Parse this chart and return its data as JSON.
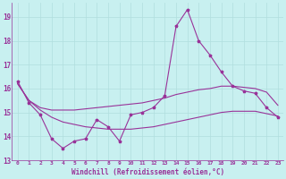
{
  "background_color": "#c8f0f0",
  "grid_color": "#b0dede",
  "line_color": "#993399",
  "marker": "*",
  "xlabel": "Windchill (Refroidissement éolien,°C)",
  "xlim": [
    -0.5,
    23.5
  ],
  "ylim": [
    13.0,
    19.6
  ],
  "yticks": [
    13,
    14,
    15,
    16,
    17,
    18,
    19
  ],
  "xticks": [
    0,
    1,
    2,
    3,
    4,
    5,
    6,
    7,
    8,
    9,
    10,
    11,
    12,
    13,
    14,
    15,
    16,
    17,
    18,
    19,
    20,
    21,
    22,
    23
  ],
  "line1_x": [
    0,
    1,
    2,
    3,
    4,
    5,
    6,
    7,
    8,
    9,
    10,
    11,
    12,
    13,
    14,
    15,
    16,
    17,
    18,
    19,
    20,
    21,
    22,
    23
  ],
  "line1_y": [
    16.3,
    15.4,
    14.9,
    13.9,
    13.5,
    13.8,
    13.9,
    14.7,
    14.4,
    13.8,
    14.9,
    15.0,
    15.2,
    15.7,
    18.6,
    19.3,
    18.0,
    17.4,
    16.7,
    16.1,
    15.9,
    15.8,
    15.2,
    14.8
  ],
  "line2_x": [
    0,
    1,
    2,
    3,
    4,
    5,
    6,
    7,
    8,
    9,
    10,
    11,
    12,
    13,
    14,
    15,
    16,
    17,
    18,
    19,
    20,
    21,
    22,
    23
  ],
  "line2_y": [
    16.2,
    15.5,
    15.2,
    15.1,
    15.1,
    15.1,
    15.15,
    15.2,
    15.25,
    15.3,
    15.35,
    15.4,
    15.5,
    15.6,
    15.75,
    15.85,
    15.95,
    16.0,
    16.1,
    16.1,
    16.05,
    16.0,
    15.85,
    15.3
  ],
  "line3_x": [
    0,
    1,
    2,
    3,
    4,
    5,
    6,
    7,
    8,
    9,
    10,
    11,
    12,
    13,
    14,
    15,
    16,
    17,
    18,
    19,
    20,
    21,
    22,
    23
  ],
  "line3_y": [
    16.2,
    15.5,
    15.1,
    14.8,
    14.6,
    14.5,
    14.4,
    14.35,
    14.3,
    14.3,
    14.3,
    14.35,
    14.4,
    14.5,
    14.6,
    14.7,
    14.8,
    14.9,
    15.0,
    15.05,
    15.05,
    15.05,
    14.95,
    14.85
  ]
}
